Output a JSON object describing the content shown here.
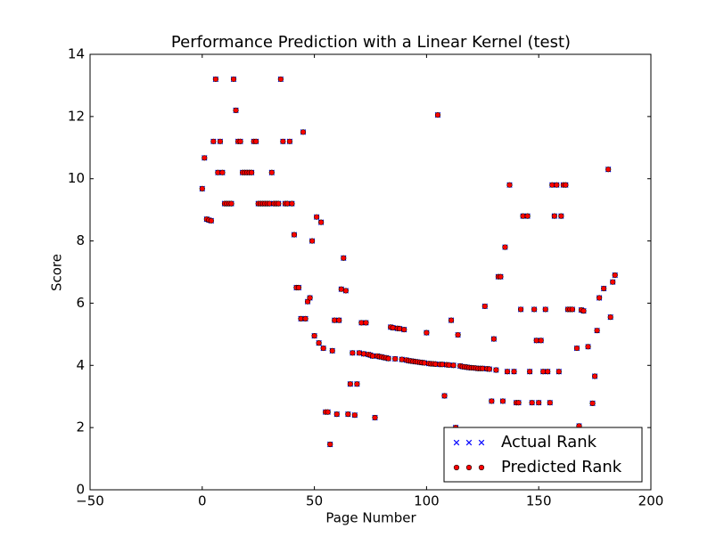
{
  "chart_data": {
    "type": "scatter",
    "title": "Performance Prediction with a Linear Kernel (test)",
    "x_label": "Page Number",
    "y_label": "Score",
    "xlim": [
      -50,
      200
    ],
    "ylim": [
      0,
      14
    ],
    "xticks": [
      {
        "value": -50,
        "label": "−50"
      },
      0,
      50,
      100,
      150,
      200
    ],
    "yticks": [
      0,
      2,
      4,
      6,
      8,
      10,
      12,
      14
    ],
    "legend": "lower right",
    "series": [
      {
        "name": "Actual Rank",
        "color": "#0000ff",
        "marker": "x",
        "x": [
          0,
          1,
          2,
          3,
          4,
          5,
          6,
          7,
          8,
          9,
          10,
          11,
          12,
          13,
          14,
          15,
          16,
          17,
          18,
          19,
          20,
          21,
          22,
          23,
          24,
          25,
          26,
          27,
          28,
          29,
          30,
          31,
          32,
          33,
          34,
          35,
          36,
          37,
          38,
          39,
          40,
          41,
          42,
          43,
          44,
          45,
          46,
          47,
          48,
          49,
          50,
          51,
          52,
          53,
          54,
          55,
          56,
          57,
          58,
          59,
          60,
          61,
          62,
          63,
          64,
          65,
          66,
          67,
          68,
          69,
          70,
          71,
          72,
          73,
          74,
          75,
          76,
          77,
          78,
          79,
          80,
          81,
          82,
          83,
          84,
          85,
          86,
          87,
          88,
          89,
          90,
          91,
          92,
          93,
          94,
          95,
          96,
          97,
          98,
          99,
          100,
          101,
          102,
          103,
          104,
          105,
          106,
          107,
          108,
          109,
          110,
          111,
          112,
          113,
          114,
          115,
          116,
          117,
          118,
          119,
          120,
          121,
          122,
          123,
          124,
          125,
          126,
          127,
          128,
          129,
          130,
          131,
          132,
          133,
          134,
          135,
          136,
          137,
          139,
          140,
          141,
          142,
          143,
          145,
          146,
          147,
          148,
          149,
          150,
          151,
          152,
          153,
          154,
          155,
          156,
          157,
          158,
          159,
          160,
          161,
          162,
          163,
          164,
          165,
          167,
          168,
          169,
          170,
          172,
          174,
          175,
          176,
          177,
          179,
          181,
          182,
          183,
          184
        ],
        "values": [
          9.68,
          10.67,
          8.7,
          8.67,
          8.65,
          11.2,
          13.2,
          10.2,
          11.2,
          10.2,
          9.2,
          9.2,
          9.2,
          9.2,
          13.2,
          12.2,
          11.2,
          11.2,
          10.2,
          10.2,
          10.2,
          10.2,
          10.2,
          11.2,
          11.2,
          9.2,
          9.2,
          9.2,
          9.2,
          9.2,
          9.2,
          10.2,
          9.2,
          9.2,
          9.2,
          13.2,
          11.2,
          9.2,
          9.2,
          11.2,
          9.2,
          8.2,
          6.5,
          6.5,
          5.5,
          11.5,
          5.5,
          6.05,
          6.17,
          8.0,
          4.95,
          8.77,
          4.72,
          8.6,
          4.55,
          2.5,
          2.5,
          1.46,
          4.47,
          5.45,
          2.43,
          5.45,
          6.45,
          7.45,
          6.4,
          2.43,
          3.4,
          4.4,
          2.4,
          3.4,
          4.4,
          5.37,
          4.37,
          5.37,
          4.35,
          4.33,
          4.3,
          2.32,
          4.3,
          4.28,
          4.27,
          4.25,
          4.24,
          4.22,
          5.23,
          5.21,
          4.21,
          5.19,
          5.18,
          4.19,
          5.15,
          4.17,
          4.15,
          4.14,
          4.13,
          4.12,
          4.11,
          4.1,
          4.09,
          4.08,
          5.05,
          4.06,
          4.05,
          4.05,
          4.04,
          12.05,
          4.03,
          4.03,
          3.02,
          4.02,
          4.01,
          5.45,
          4.0,
          2.0,
          4.98,
          3.98,
          3.96,
          3.95,
          3.94,
          3.93,
          3.92,
          3.92,
          3.91,
          3.9,
          3.9,
          3.9,
          5.9,
          3.89,
          3.88,
          2.85,
          4.85,
          3.85,
          6.85,
          6.85,
          2.85,
          7.8,
          3.8,
          9.8,
          3.8,
          2.8,
          2.8,
          5.8,
          8.8,
          8.8,
          3.8,
          2.8,
          5.8,
          4.8,
          2.8,
          4.8,
          3.8,
          5.8,
          3.8,
          2.8,
          9.8,
          8.8,
          9.8,
          3.8,
          8.8,
          9.8,
          9.8,
          5.8,
          5.8,
          5.8,
          4.55,
          2.05,
          5.78,
          5.75,
          4.6,
          2.78,
          3.65,
          5.12,
          6.17,
          6.47,
          10.3,
          5.55,
          6.68,
          6.9
        ]
      },
      {
        "name": "Predicted Rank",
        "color": "#ff0000",
        "marker": "o",
        "x": [
          0,
          1,
          2,
          3,
          4,
          5,
          6,
          7,
          8,
          9,
          10,
          11,
          12,
          13,
          14,
          15,
          16,
          17,
          18,
          19,
          20,
          21,
          22,
          23,
          24,
          25,
          26,
          27,
          28,
          29,
          30,
          31,
          32,
          33,
          34,
          35,
          36,
          37,
          38,
          39,
          40,
          41,
          42,
          43,
          44,
          45,
          46,
          47,
          48,
          49,
          50,
          51,
          52,
          53,
          54,
          55,
          56,
          57,
          58,
          59,
          60,
          61,
          62,
          63,
          64,
          65,
          66,
          67,
          68,
          69,
          70,
          71,
          72,
          73,
          74,
          75,
          76,
          77,
          78,
          79,
          80,
          81,
          82,
          83,
          84,
          85,
          86,
          87,
          88,
          89,
          90,
          91,
          92,
          93,
          94,
          95,
          96,
          97,
          98,
          99,
          100,
          101,
          102,
          103,
          104,
          105,
          106,
          107,
          108,
          109,
          110,
          111,
          112,
          113,
          114,
          115,
          116,
          117,
          118,
          119,
          120,
          121,
          122,
          123,
          124,
          125,
          126,
          127,
          128,
          129,
          130,
          131,
          132,
          133,
          134,
          135,
          136,
          137,
          139,
          140,
          141,
          142,
          143,
          145,
          146,
          147,
          148,
          149,
          150,
          151,
          152,
          153,
          154,
          155,
          156,
          157,
          158,
          159,
          160,
          161,
          162,
          163,
          164,
          165,
          167,
          168,
          169,
          170,
          172,
          174,
          175,
          176,
          177,
          179,
          181,
          182,
          183,
          184
        ],
        "values": [
          9.68,
          10.67,
          8.7,
          8.67,
          8.65,
          11.2,
          13.2,
          10.2,
          11.2,
          10.2,
          9.2,
          9.2,
          9.2,
          9.2,
          13.2,
          12.2,
          11.2,
          11.2,
          10.2,
          10.2,
          10.2,
          10.2,
          10.2,
          11.2,
          11.2,
          9.2,
          9.2,
          9.2,
          9.2,
          9.2,
          9.2,
          10.2,
          9.2,
          9.2,
          9.2,
          13.2,
          11.2,
          9.2,
          9.2,
          11.2,
          9.2,
          8.2,
          6.5,
          6.5,
          5.5,
          11.5,
          5.5,
          6.05,
          6.17,
          8.0,
          4.95,
          8.77,
          4.72,
          8.6,
          4.55,
          2.5,
          2.5,
          1.46,
          4.47,
          5.45,
          2.43,
          5.45,
          6.45,
          7.45,
          6.4,
          2.43,
          3.4,
          4.4,
          2.4,
          3.4,
          4.4,
          5.37,
          4.37,
          5.37,
          4.35,
          4.33,
          4.3,
          2.32,
          4.3,
          4.28,
          4.27,
          4.25,
          4.24,
          4.22,
          5.23,
          5.21,
          4.21,
          5.19,
          5.18,
          4.19,
          5.15,
          4.17,
          4.15,
          4.14,
          4.13,
          4.12,
          4.11,
          4.1,
          4.09,
          4.08,
          5.05,
          4.06,
          4.05,
          4.05,
          4.04,
          12.05,
          4.03,
          4.03,
          3.02,
          4.02,
          4.01,
          5.45,
          4.0,
          2.0,
          4.98,
          3.98,
          3.96,
          3.95,
          3.94,
          3.93,
          3.92,
          3.92,
          3.91,
          3.9,
          3.9,
          3.9,
          5.9,
          3.89,
          3.88,
          2.85,
          4.85,
          3.85,
          6.85,
          6.85,
          2.85,
          7.8,
          3.8,
          9.8,
          3.8,
          2.8,
          2.8,
          5.8,
          8.8,
          8.8,
          3.8,
          2.8,
          5.8,
          4.8,
          2.8,
          4.8,
          3.8,
          5.8,
          3.8,
          2.8,
          9.8,
          8.8,
          9.8,
          3.8,
          8.8,
          9.8,
          9.8,
          5.8,
          5.8,
          5.8,
          4.55,
          2.05,
          5.78,
          5.75,
          4.6,
          2.78,
          3.65,
          5.12,
          6.17,
          6.47,
          10.3,
          5.55,
          6.68,
          6.9
        ]
      }
    ]
  }
}
